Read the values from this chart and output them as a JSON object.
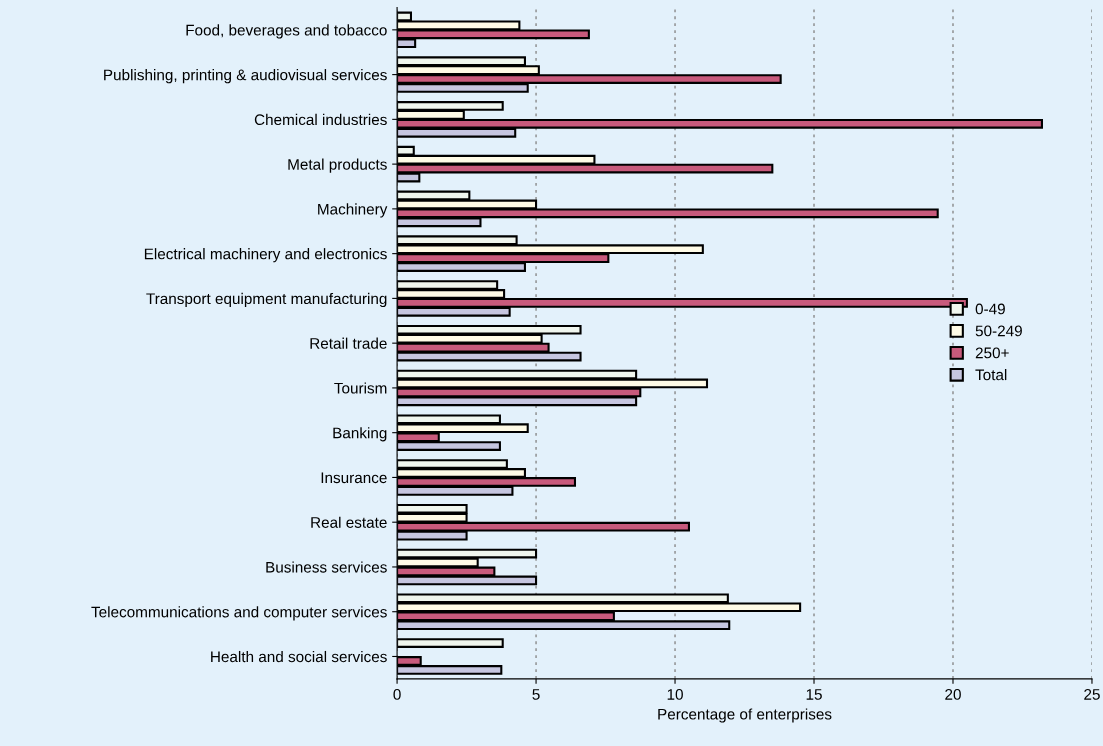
{
  "chart_data": {
    "type": "bar",
    "orientation": "horizontal",
    "xlabel": "Percentage of enterprises",
    "categories": [
      "Food, beverages and tobacco",
      "Publishing, printing & audiovisual services",
      "Chemical industries",
      "Metal products",
      "Machinery",
      "Electrical machinery and electronics",
      "Transport equipment manufacturing",
      "Retail trade",
      "Tourism",
      "Banking",
      "Insurance",
      "Real estate",
      "Business services",
      "Telecommunications and computer services",
      "Health and social services"
    ],
    "series": [
      {
        "name": "0-49",
        "color": "#f0f6ee",
        "values": [
          0.5,
          4.6,
          3.8,
          0.6,
          2.6,
          4.3,
          3.6,
          6.6,
          8.6,
          3.7,
          3.95,
          2.5,
          5.0,
          11.9,
          3.8
        ]
      },
      {
        "name": "50-249",
        "color": "#fffbe6",
        "values": [
          4.4,
          5.1,
          2.4,
          7.1,
          5.0,
          11.0,
          3.85,
          5.2,
          11.15,
          4.7,
          4.6,
          2.5,
          2.9,
          14.5,
          null
        ]
      },
      {
        "name": "250+",
        "color": "#c85a7c",
        "values": [
          6.9,
          13.8,
          23.2,
          13.5,
          19.45,
          7.6,
          20.5,
          5.45,
          8.75,
          1.5,
          6.4,
          10.5,
          3.5,
          7.8,
          0.85
        ]
      },
      {
        "name": "Total",
        "color": "#c6c6e0",
        "values": [
          0.65,
          4.7,
          4.25,
          0.8,
          3.0,
          4.6,
          4.05,
          6.6,
          8.6,
          3.7,
          4.15,
          2.5,
          5.0,
          11.95,
          3.75
        ]
      }
    ],
    "xlim": [
      0,
      25
    ],
    "xticks": [
      0,
      5,
      10,
      15,
      20,
      25
    ],
    "grid": "x",
    "legend": "center right"
  }
}
